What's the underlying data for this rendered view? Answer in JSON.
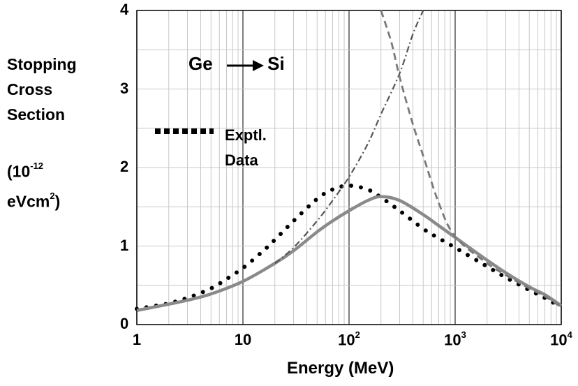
{
  "chart_data": {
    "type": "line",
    "title": "Ge → Si",
    "title_left": "Ge",
    "title_right": "Si",
    "xlabel": "Energy  (MeV)",
    "ylabel_lines": [
      "Stopping",
      "Cross",
      "Section"
    ],
    "ylabel_units": {
      "base": "(10",
      "exp": "-12",
      "unit": "eVcm",
      "unit_exp": "2",
      "close": ")"
    },
    "x_scale": "log",
    "xlim": [
      1,
      10000
    ],
    "ylim": [
      0,
      4
    ],
    "grid": true,
    "x_ticks": [
      {
        "value": 1,
        "label": "1",
        "exp": ""
      },
      {
        "value": 10,
        "label": "10",
        "exp": ""
      },
      {
        "value": 100,
        "label": "10",
        "exp": "2"
      },
      {
        "value": 1000,
        "label": "10",
        "exp": "3"
      },
      {
        "value": 10000,
        "label": "10",
        "exp": "4"
      }
    ],
    "y_ticks": [
      0,
      1,
      2,
      3,
      4
    ],
    "legend": {
      "label_lines": [
        "Exptl.",
        "Data"
      ],
      "placement": "left, middle"
    },
    "series": [
      {
        "name": "Exptl. Data",
        "style": "dotted",
        "color": "#000000",
        "x": [
          1,
          1.5,
          2,
          3,
          5,
          7,
          10,
          15,
          20,
          30,
          50,
          70,
          100,
          150,
          200,
          300,
          500,
          700,
          1000,
          2000,
          3000,
          5000,
          7000,
          10000
        ],
        "y": [
          0.2,
          0.24,
          0.27,
          0.34,
          0.46,
          0.58,
          0.72,
          0.92,
          1.08,
          1.32,
          1.6,
          1.72,
          1.77,
          1.72,
          1.62,
          1.45,
          1.22,
          1.1,
          0.98,
          0.74,
          0.6,
          0.44,
          0.34,
          0.22
        ]
      },
      {
        "style": "solid",
        "color": "#8a8a8a",
        "x": [
          1,
          2,
          3,
          5,
          10,
          20,
          30,
          50,
          70,
          100,
          150,
          200,
          300,
          500,
          700,
          1000,
          2000,
          3000,
          5000,
          7000,
          10000
        ],
        "y": [
          0.18,
          0.26,
          0.31,
          0.39,
          0.55,
          0.78,
          0.94,
          1.18,
          1.32,
          1.45,
          1.58,
          1.63,
          1.58,
          1.4,
          1.26,
          1.11,
          0.82,
          0.66,
          0.48,
          0.38,
          0.24
        ]
      },
      {
        "style": "dashdot",
        "color": "#555555",
        "x": [
          20,
          30,
          50,
          70,
          100,
          150,
          200,
          300,
          400,
          500
        ],
        "y": [
          0.78,
          0.98,
          1.32,
          1.58,
          1.88,
          2.3,
          2.68,
          3.2,
          3.7,
          4.0
        ]
      },
      {
        "style": "dashed",
        "color": "#7a7a7a",
        "x": [
          200,
          250,
          300,
          400,
          500,
          700,
          1000,
          2000,
          3000,
          5000,
          7000,
          10000
        ],
        "y": [
          4.0,
          3.6,
          3.15,
          2.55,
          2.15,
          1.55,
          1.12,
          0.78,
          0.63,
          0.46,
          0.36,
          0.22
        ]
      }
    ]
  }
}
